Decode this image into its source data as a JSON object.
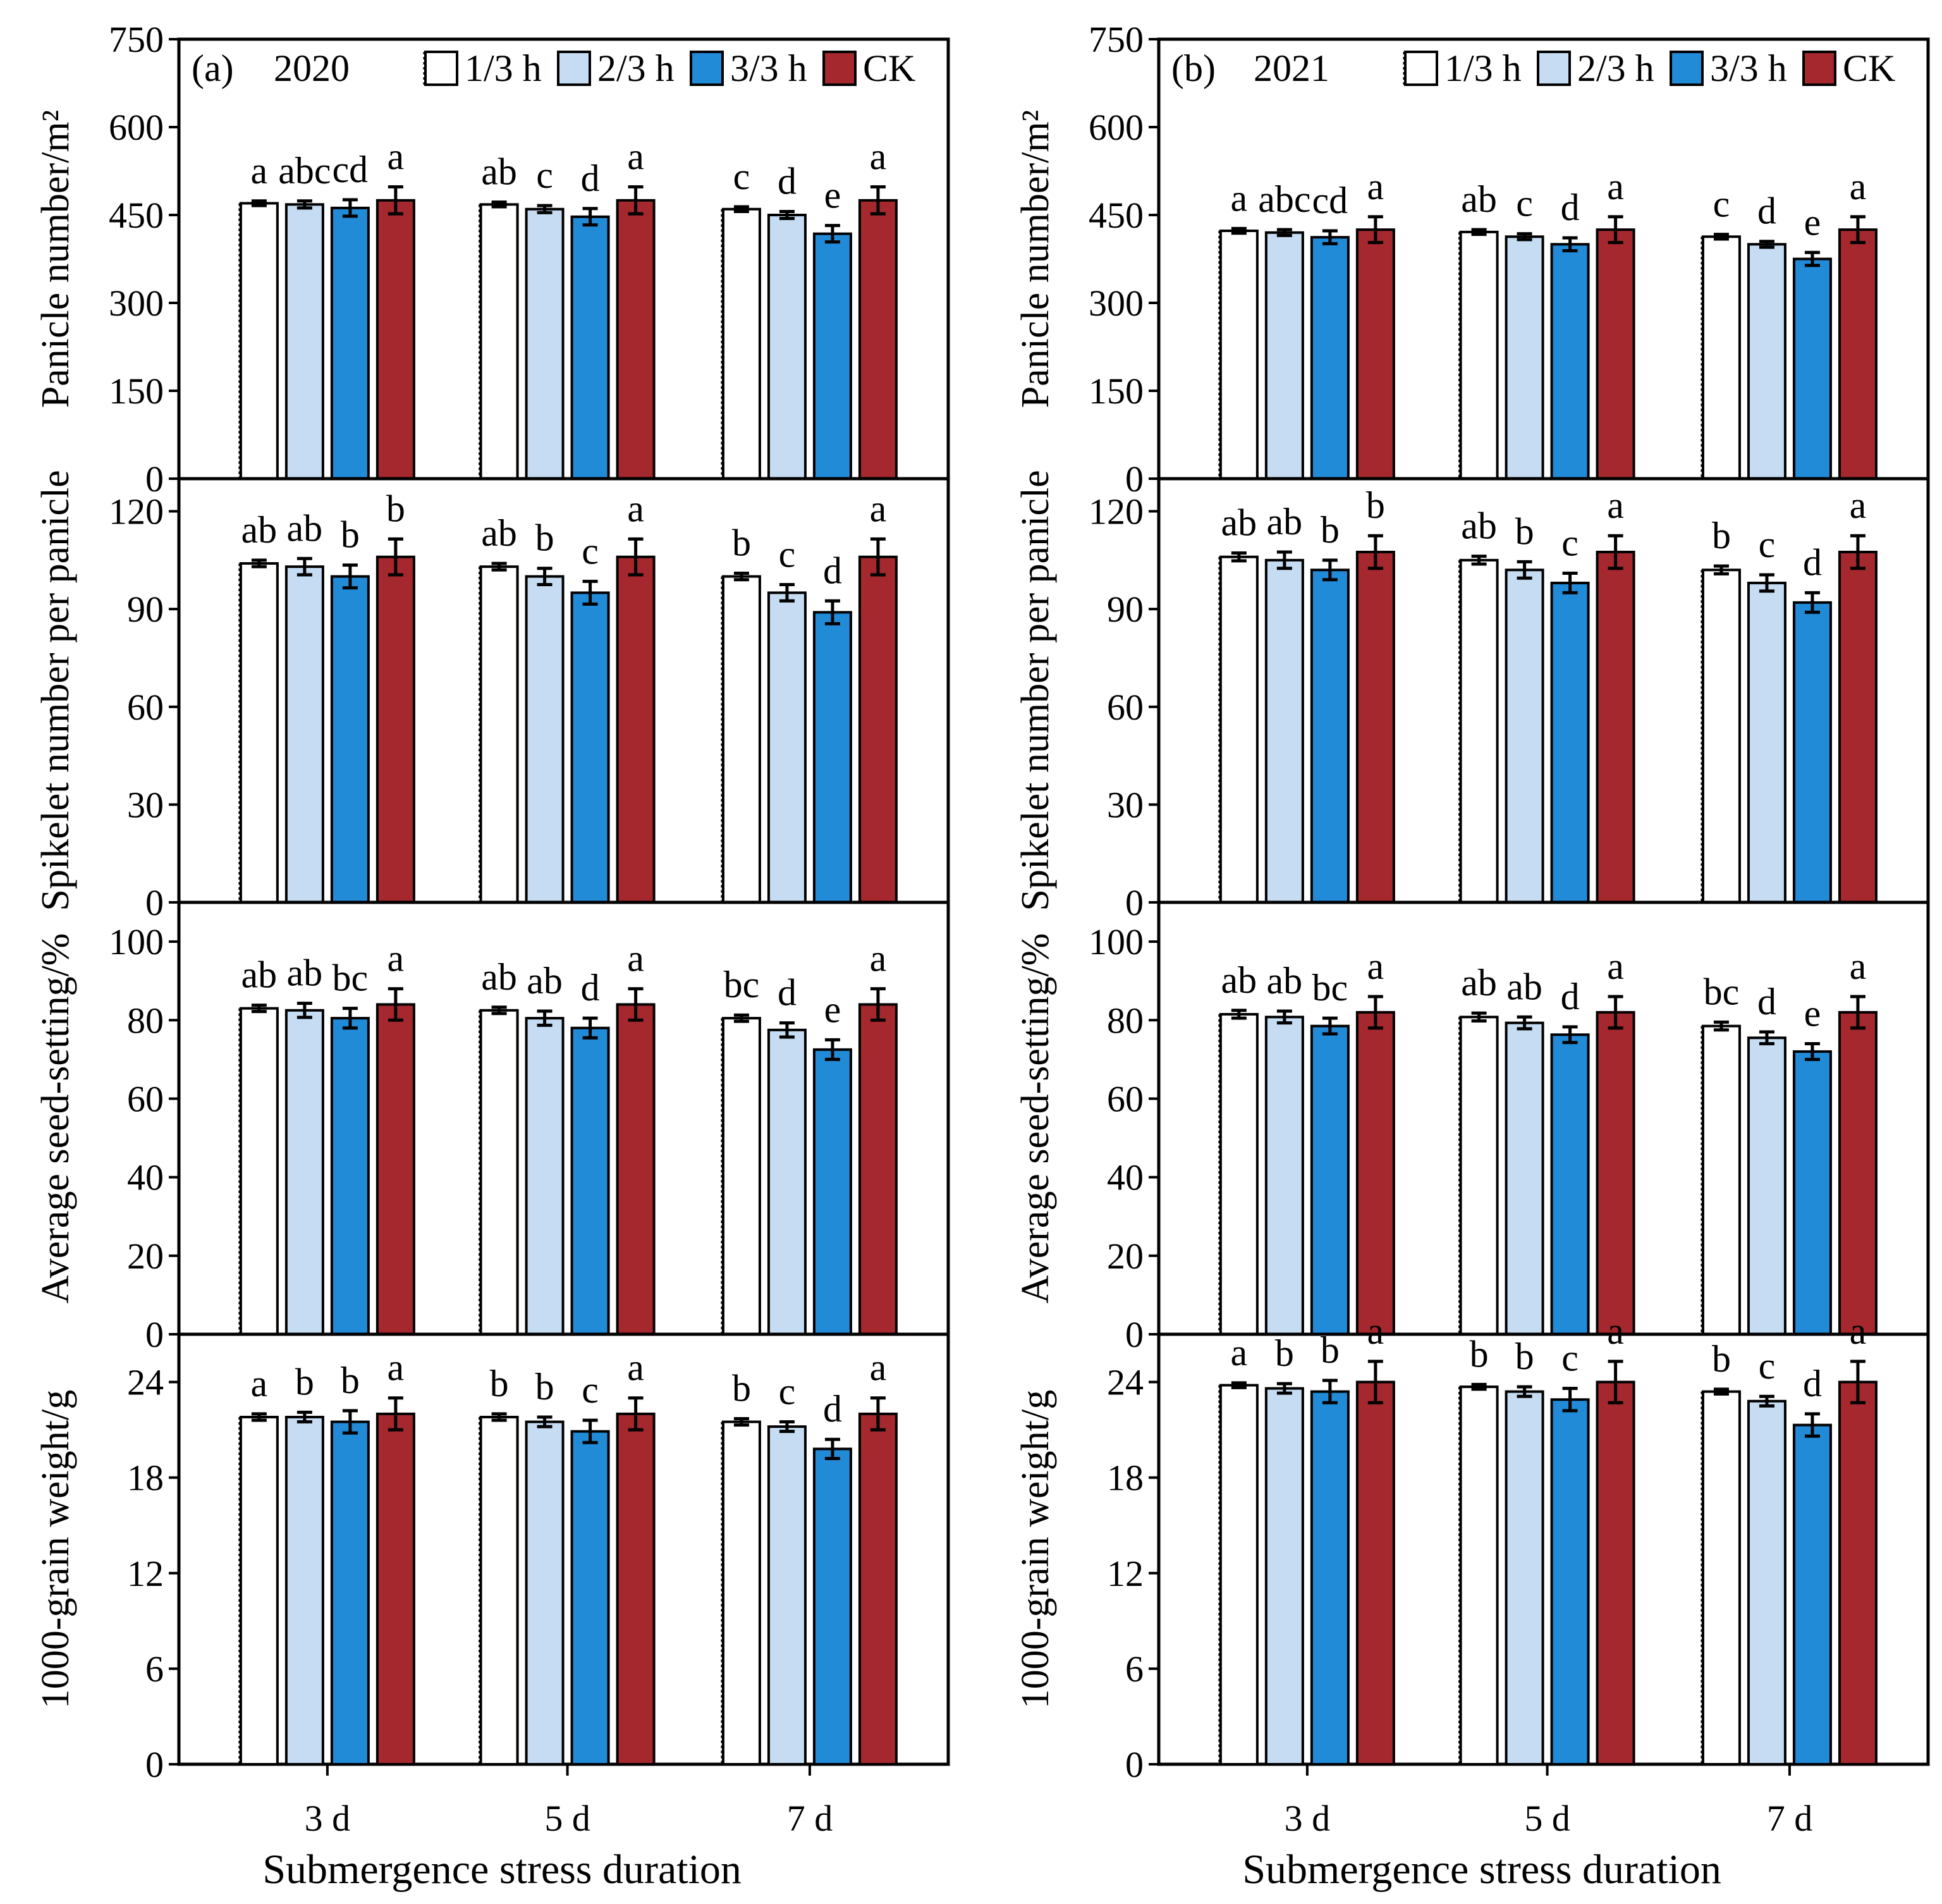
{
  "chart_data": [
    {
      "type": "bar",
      "panel": "(a)",
      "title": "2020",
      "xlabel": "Submergence stress duration",
      "categories": [
        "3 d",
        "5 d",
        "7 d"
      ],
      "legend": [
        {
          "name": "1/3 h",
          "color": "#ffffff",
          "pattern": "dotted-left-edge"
        },
        {
          "name": "2/3 h",
          "color": "#c5dcf2"
        },
        {
          "name": "3/3 h",
          "color": "#228bd8"
        },
        {
          "name": "CK",
          "color": "#a4282d"
        }
      ],
      "rows": [
        {
          "ylabel": "Panicle number/m²",
          "ylim": [
            0,
            750
          ],
          "yticks": [
            0,
            150,
            300,
            450,
            600,
            750
          ],
          "series": [
            {
              "name": "1/3 h",
              "values": [
                470,
                468,
                460
              ],
              "errors": [
                4,
                4,
                4
              ],
              "letters": [
                "a",
                "ab",
                "c"
              ]
            },
            {
              "name": "2/3 h",
              "values": [
                468,
                460,
                450
              ],
              "errors": [
                6,
                6,
                6
              ],
              "letters": [
                "abc",
                "c",
                "d"
              ]
            },
            {
              "name": "3/3 h",
              "values": [
                462,
                447,
                418
              ],
              "errors": [
                14,
                14,
                14
              ],
              "letters": [
                "cd",
                "d",
                "e"
              ]
            },
            {
              "name": "CK",
              "values": [
                475,
                475,
                475
              ],
              "errors": [
                23,
                23,
                23
              ],
              "letters": [
                "a",
                "a",
                "a"
              ]
            }
          ]
        },
        {
          "ylabel": "Spikelet number per panicle",
          "ylim": [
            0,
            130
          ],
          "yticks": [
            0,
            30,
            60,
            90,
            120
          ],
          "series": [
            {
              "name": "1/3 h",
              "values": [
                104,
                103,
                100
              ],
              "errors": [
                1,
                1,
                1
              ],
              "letters": [
                "ab",
                "ab",
                "b"
              ]
            },
            {
              "name": "2/3 h",
              "values": [
                103,
                100,
                95
              ],
              "errors": [
                2.5,
                2.5,
                2.5
              ],
              "letters": [
                "ab",
                "b",
                "c"
              ]
            },
            {
              "name": "3/3 h",
              "values": [
                100,
                95,
                89
              ],
              "errors": [
                3.5,
                3.5,
                3.5
              ],
              "letters": [
                "b",
                "c",
                "d"
              ]
            },
            {
              "name": "CK",
              "values": [
                106,
                106,
                106
              ],
              "errors": [
                5.5,
                5.5,
                5.5
              ],
              "letters": [
                "b",
                "a",
                "a"
              ]
            }
          ]
        },
        {
          "ylabel": "Average seed-setting/%",
          "ylim": [
            0,
            110
          ],
          "yticks": [
            0,
            20,
            40,
            60,
            80,
            100
          ],
          "series": [
            {
              "name": "1/3 h",
              "values": [
                83,
                82.5,
                80.5
              ],
              "errors": [
                0.8,
                0.8,
                0.8
              ],
              "letters": [
                "ab",
                "ab",
                "bc"
              ]
            },
            {
              "name": "2/3 h",
              "values": [
                82.5,
                80.5,
                77.5
              ],
              "errors": [
                1.8,
                1.8,
                1.8
              ],
              "letters": [
                "ab",
                "ab",
                "d"
              ]
            },
            {
              "name": "3/3 h",
              "values": [
                80.5,
                78,
                72.5
              ],
              "errors": [
                2.5,
                2.5,
                2.5
              ],
              "letters": [
                "bc",
                "d",
                "e"
              ]
            },
            {
              "name": "CK",
              "values": [
                84,
                84,
                84
              ],
              "errors": [
                4,
                4,
                4
              ],
              "letters": [
                "a",
                "a",
                "a"
              ]
            }
          ]
        },
        {
          "ylabel": "1000-grain weight/g",
          "ylim": [
            0,
            27
          ],
          "yticks": [
            0,
            6,
            12,
            18,
            24
          ],
          "series": [
            {
              "name": "1/3 h",
              "values": [
                21.8,
                21.8,
                21.5
              ],
              "errors": [
                0.2,
                0.2,
                0.2
              ],
              "letters": [
                "a",
                "b",
                "b"
              ]
            },
            {
              "name": "2/3 h",
              "values": [
                21.8,
                21.5,
                21.2
              ],
              "errors": [
                0.3,
                0.3,
                0.3
              ],
              "letters": [
                "b",
                "b",
                "c"
              ]
            },
            {
              "name": "3/3 h",
              "values": [
                21.5,
                20.9,
                19.8
              ],
              "errors": [
                0.7,
                0.7,
                0.6
              ],
              "letters": [
                "b",
                "c",
                "d"
              ]
            },
            {
              "name": "CK",
              "values": [
                22,
                22,
                22
              ],
              "errors": [
                1,
                1,
                1
              ],
              "letters": [
                "a",
                "a",
                "a"
              ]
            }
          ]
        }
      ]
    },
    {
      "type": "bar",
      "panel": "(b)",
      "title": "2021",
      "xlabel": "Submergence stress duration",
      "categories": [
        "3 d",
        "5 d",
        "7 d"
      ],
      "legend": [
        {
          "name": "1/3 h",
          "color": "#ffffff",
          "pattern": "dotted-left-edge"
        },
        {
          "name": "2/3 h",
          "color": "#c5dcf2"
        },
        {
          "name": "3/3 h",
          "color": "#228bd8"
        },
        {
          "name": "CK",
          "color": "#a4282d"
        }
      ],
      "rows": [
        {
          "ylabel": "Panicle number/m²",
          "ylim": [
            0,
            750
          ],
          "yticks": [
            0,
            150,
            300,
            450,
            600,
            750
          ],
          "series": [
            {
              "name": "1/3 h",
              "values": [
                423,
                421,
                413
              ],
              "errors": [
                4,
                4,
                4
              ],
              "letters": [
                "a",
                "ab",
                "c"
              ]
            },
            {
              "name": "2/3 h",
              "values": [
                420,
                413,
                400
              ],
              "errors": [
                5,
                5,
                5
              ],
              "letters": [
                "abc",
                "c",
                "d"
              ]
            },
            {
              "name": "3/3 h",
              "values": [
                412,
                400,
                375
              ],
              "errors": [
                11,
                11,
                11
              ],
              "letters": [
                "cd",
                "d",
                "e"
              ]
            },
            {
              "name": "CK",
              "values": [
                425,
                425,
                425
              ],
              "errors": [
                22,
                22,
                22
              ],
              "letters": [
                "a",
                "a",
                "a"
              ]
            }
          ]
        },
        {
          "ylabel": "Spikelet number per panicle",
          "ylim": [
            0,
            130
          ],
          "yticks": [
            0,
            30,
            60,
            90,
            120
          ],
          "series": [
            {
              "name": "1/3 h",
              "values": [
                106,
                105,
                102
              ],
              "errors": [
                1.2,
                1.2,
                1.2
              ],
              "letters": [
                "ab",
                "ab",
                "b"
              ]
            },
            {
              "name": "2/3 h",
              "values": [
                105,
                102,
                98
              ],
              "errors": [
                2.5,
                2.5,
                2.5
              ],
              "letters": [
                "ab",
                "b",
                "c"
              ]
            },
            {
              "name": "3/3 h",
              "values": [
                102,
                98,
                92
              ],
              "errors": [
                3,
                3,
                3
              ],
              "letters": [
                "b",
                "c",
                "d"
              ]
            },
            {
              "name": "CK",
              "values": [
                107.5,
                107.5,
                107.5
              ],
              "errors": [
                5,
                5,
                5
              ],
              "letters": [
                "b",
                "a",
                "a"
              ]
            }
          ]
        },
        {
          "ylabel": "Average seed-setting/%",
          "ylim": [
            0,
            110
          ],
          "yticks": [
            0,
            20,
            40,
            60,
            80,
            100
          ],
          "series": [
            {
              "name": "1/3 h",
              "values": [
                81.5,
                80.8,
                78.5
              ],
              "errors": [
                1,
                1,
                1
              ],
              "letters": [
                "ab",
                "ab",
                "bc"
              ]
            },
            {
              "name": "2/3 h",
              "values": [
                80.8,
                79.3,
                75.5
              ],
              "errors": [
                1.5,
                1.5,
                1.5
              ],
              "letters": [
                "ab",
                "ab",
                "d"
              ]
            },
            {
              "name": "3/3 h",
              "values": [
                78.5,
                76.3,
                72
              ],
              "errors": [
                2,
                2,
                2
              ],
              "letters": [
                "bc",
                "d",
                "e"
              ]
            },
            {
              "name": "CK",
              "values": [
                82,
                82,
                82
              ],
              "errors": [
                4,
                4,
                4
              ],
              "letters": [
                "a",
                "a",
                "a"
              ]
            }
          ]
        },
        {
          "ylabel": "1000-grain weight/g",
          "ylim": [
            0,
            27
          ],
          "yticks": [
            0,
            6,
            12,
            18,
            24
          ],
          "series": [
            {
              "name": "1/3 h",
              "values": [
                23.8,
                23.7,
                23.4
              ],
              "errors": [
                0.15,
                0.15,
                0.15
              ],
              "letters": [
                "a",
                "b",
                "b"
              ]
            },
            {
              "name": "2/3 h",
              "values": [
                23.6,
                23.4,
                22.8
              ],
              "errors": [
                0.3,
                0.3,
                0.3
              ],
              "letters": [
                "b",
                "b",
                "c"
              ]
            },
            {
              "name": "3/3 h",
              "values": [
                23.4,
                22.9,
                21.3
              ],
              "errors": [
                0.7,
                0.7,
                0.7
              ],
              "letters": [
                "b",
                "c",
                "d"
              ]
            },
            {
              "name": "CK",
              "values": [
                24,
                24,
                24
              ],
              "errors": [
                1.3,
                1.3,
                1.3
              ],
              "letters": [
                "a",
                "a",
                "a"
              ]
            }
          ]
        }
      ]
    }
  ],
  "colors": {
    "axis": "#000000",
    "bar_1_3h": "#ffffff",
    "bar_2_3h": "#c5dcf2",
    "bar_3_3h": "#228bd8",
    "bar_ck": "#a4282d"
  }
}
